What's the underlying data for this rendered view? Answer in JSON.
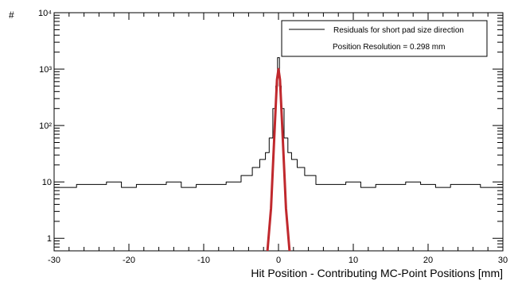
{
  "chart_data": {
    "type": "line",
    "title": "",
    "xlabel": "Hit Position - Contributing MC-Point Positions [mm]",
    "ylabel": "#",
    "xlim": [
      -30,
      30
    ],
    "ylim": [
      0.6,
      10000
    ],
    "yscale": "log",
    "grid": false,
    "legend_position": "top-right",
    "x_ticks": [
      -30,
      -20,
      -10,
      0,
      10,
      20,
      30
    ],
    "x_tick_labels": [
      "-30",
      "-20",
      "-10",
      "0",
      "10",
      "20",
      "30"
    ],
    "y_ticks": [
      1,
      10,
      100,
      1000,
      10000
    ],
    "y_tick_labels": [
      "1",
      "10",
      "10²",
      "10³",
      "10⁴"
    ],
    "legend": {
      "entry": "Residuals for short pad size direction",
      "note": "Position Resolution =  0.298 mm"
    },
    "series": [
      {
        "name": "Residuals for short pad size direction",
        "style": "step",
        "color": "#000000",
        "x": [
          -28,
          -26,
          -24,
          -22,
          -20,
          -18,
          -16,
          -14,
          -12,
          -10,
          -8,
          -6,
          -4,
          -3,
          -2,
          -1.5,
          -1,
          -0.5,
          -0.25,
          0,
          0.25,
          0.5,
          1,
          1.5,
          2,
          3,
          4,
          6,
          8,
          10,
          12,
          14,
          16,
          18,
          20,
          22,
          24,
          26,
          28
        ],
        "y": [
          8,
          9,
          9,
          10,
          8,
          9,
          9,
          10,
          8,
          9,
          9,
          10,
          13,
          18,
          25,
          33,
          60,
          200,
          500,
          1600,
          500,
          200,
          60,
          33,
          25,
          18,
          13,
          9,
          9,
          10,
          8,
          9,
          9,
          10,
          9,
          8,
          9,
          9,
          8
        ]
      },
      {
        "name": "",
        "style": "line",
        "color": "#c0282d",
        "x": [
          -1.5,
          -1,
          -0.5,
          -0.2,
          0,
          0.2,
          0.5,
          1,
          1.5
        ],
        "y": [
          0.55,
          3.4,
          96,
          650,
          1000,
          650,
          96,
          3.4,
          0.55
        ]
      }
    ]
  }
}
